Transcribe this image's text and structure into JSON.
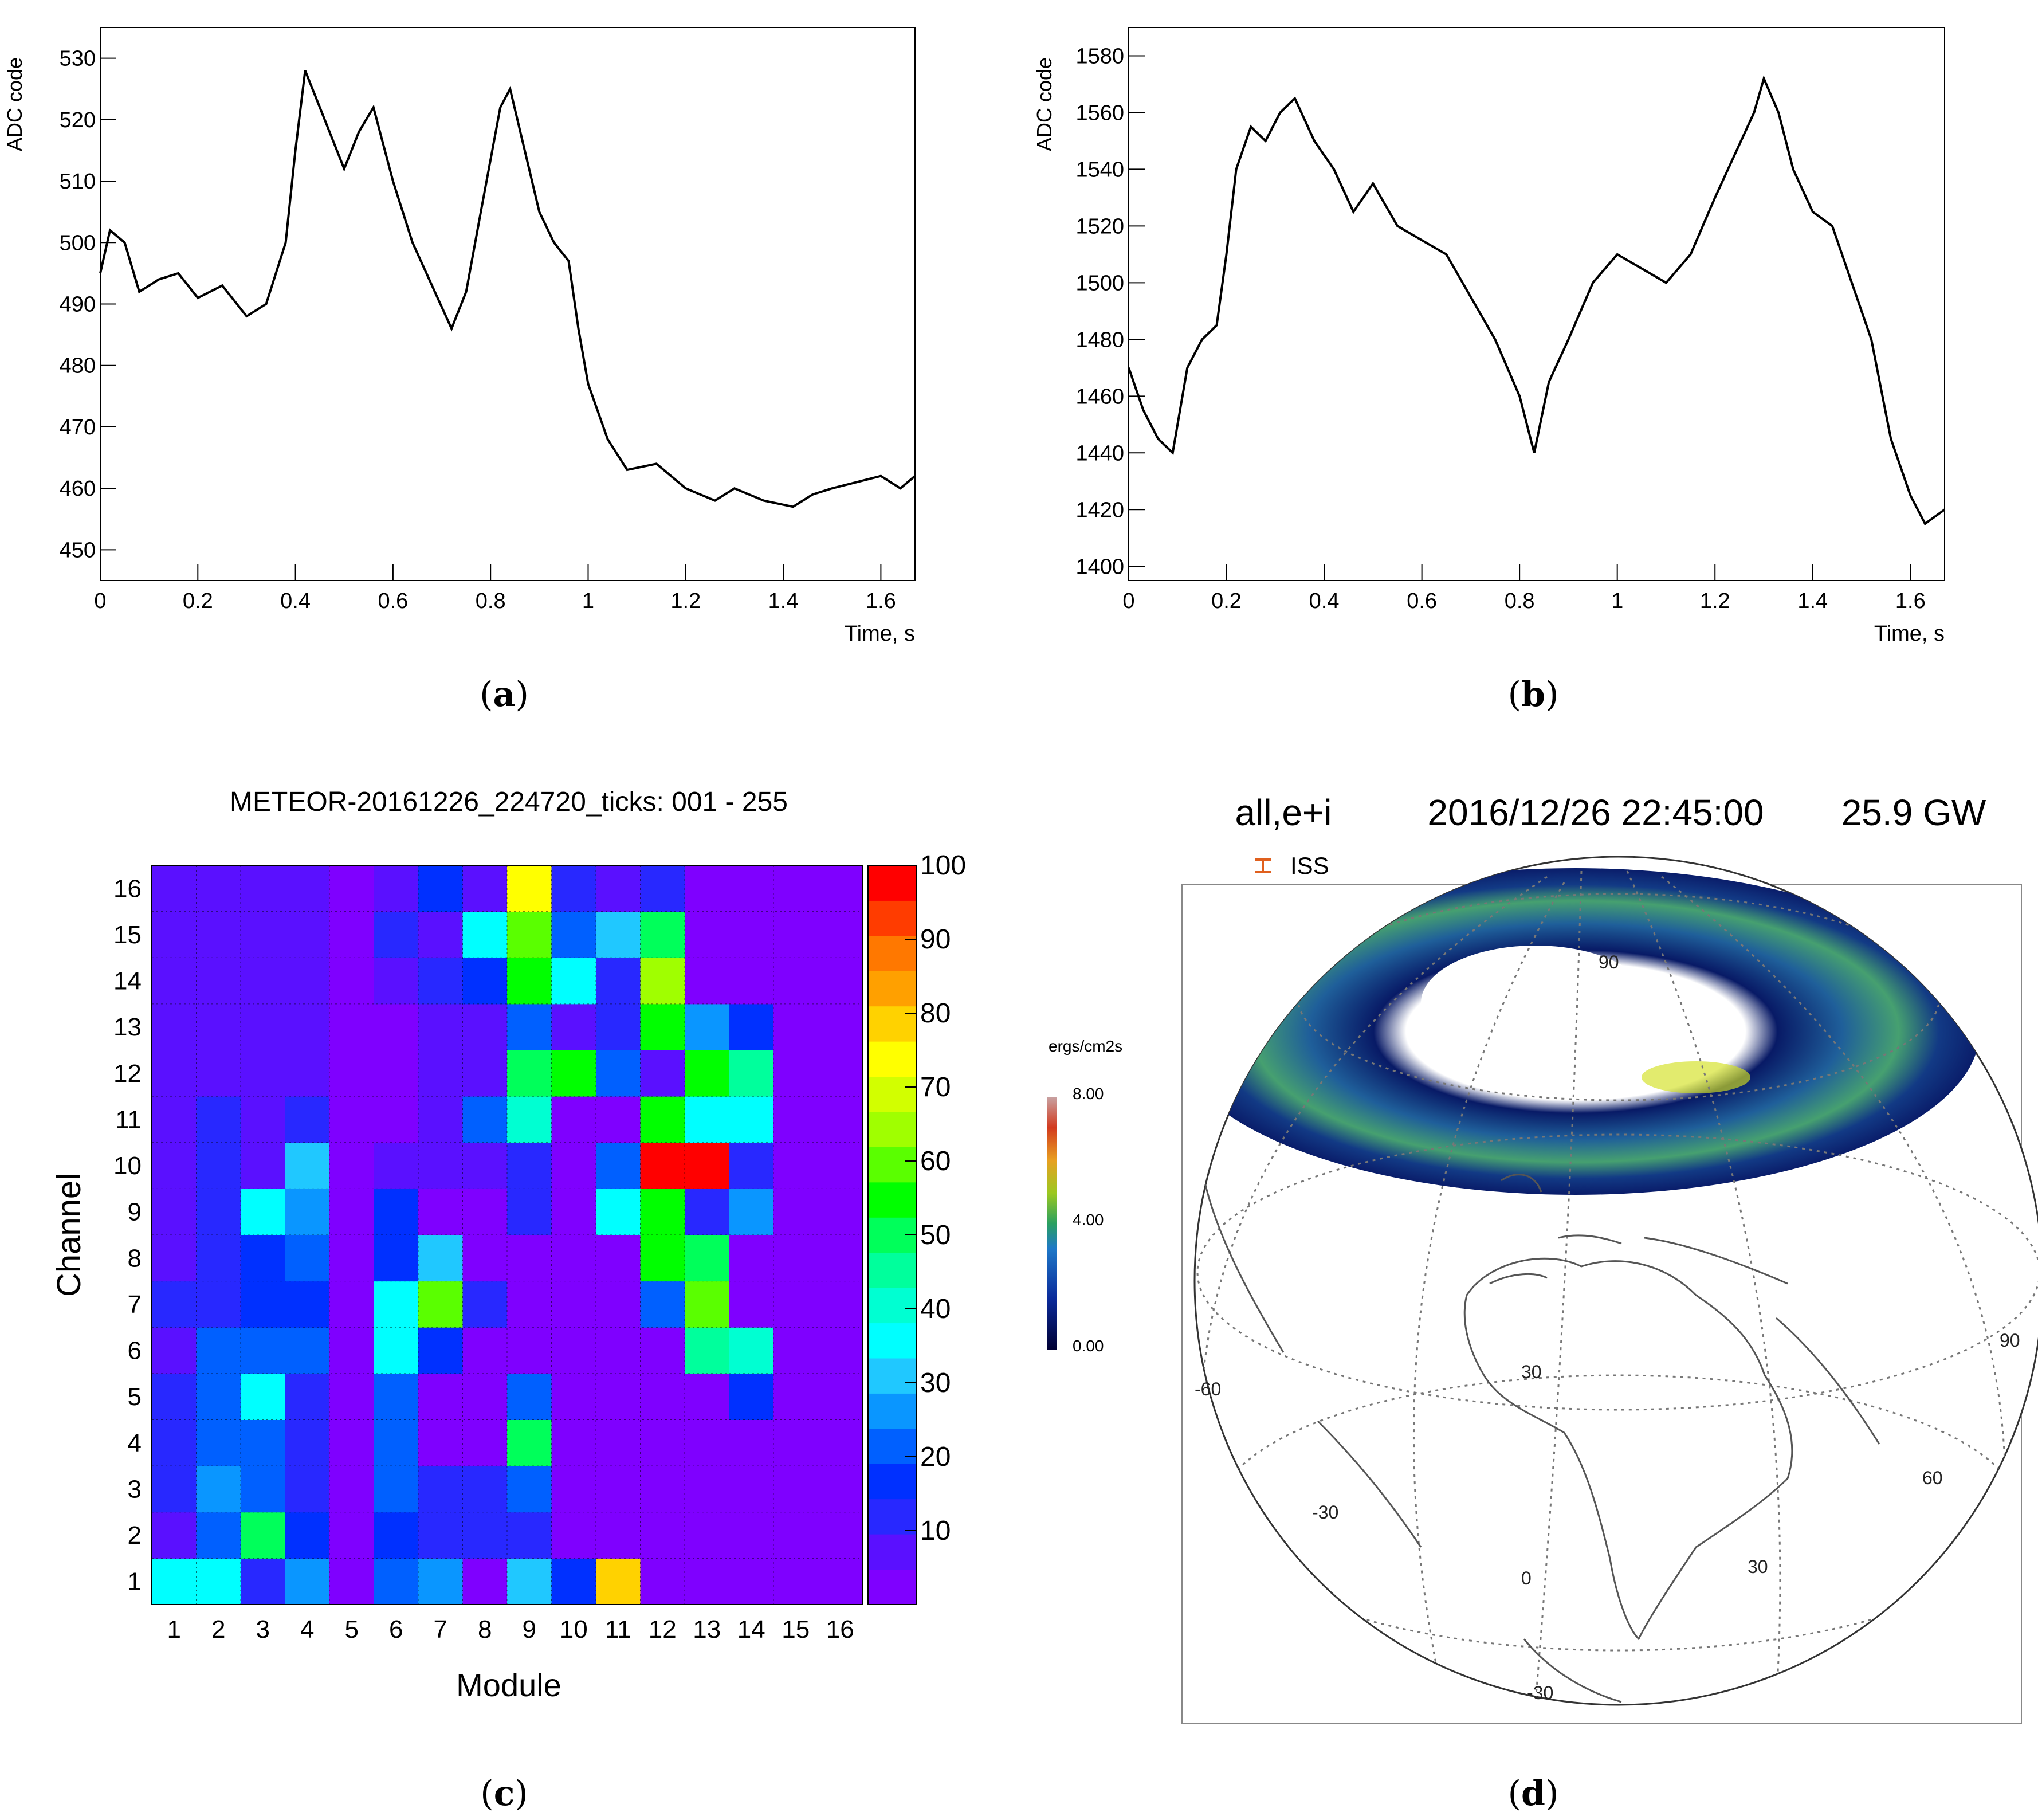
{
  "figure": {
    "panel_a": {
      "caption_letter": "a"
    },
    "panel_b": {
      "caption_letter": "b"
    },
    "panel_c": {
      "caption_letter": "c"
    },
    "panel_d": {
      "caption_letter": "d"
    }
  },
  "chart_data": [
    {
      "id": "a",
      "type": "line",
      "title": "",
      "xlabel": "Time, s",
      "ylabel": "ADC code",
      "xlim": [
        0,
        1.67
      ],
      "ylim": [
        445,
        535
      ],
      "xticks": [
        0,
        0.2,
        0.4,
        0.6,
        0.8,
        1,
        1.2,
        1.4,
        1.6
      ],
      "xtick_labels": [
        "0",
        "0.2",
        "0.4",
        "0.6",
        "0.8",
        "1",
        "1.2",
        "1.4",
        "1.6"
      ],
      "yticks": [
        450,
        460,
        470,
        480,
        490,
        500,
        510,
        520,
        530
      ],
      "ytick_labels": [
        "450",
        "460",
        "470",
        "480",
        "490",
        "500",
        "510",
        "520",
        "530"
      ],
      "x": [
        0,
        0.02,
        0.05,
        0.08,
        0.12,
        0.16,
        0.2,
        0.25,
        0.3,
        0.34,
        0.38,
        0.4,
        0.42,
        0.45,
        0.48,
        0.5,
        0.53,
        0.56,
        0.6,
        0.64,
        0.68,
        0.72,
        0.75,
        0.78,
        0.82,
        0.84,
        0.87,
        0.9,
        0.93,
        0.96,
        0.98,
        1.0,
        1.04,
        1.08,
        1.14,
        1.2,
        1.26,
        1.3,
        1.36,
        1.42,
        1.46,
        1.5,
        1.55,
        1.6,
        1.64,
        1.67
      ],
      "y": [
        495,
        502,
        500,
        492,
        494,
        495,
        491,
        493,
        488,
        490,
        500,
        515,
        528,
        522,
        516,
        512,
        518,
        522,
        510,
        500,
        493,
        486,
        492,
        505,
        522,
        525,
        515,
        505,
        500,
        497,
        486,
        477,
        468,
        463,
        464,
        460,
        458,
        460,
        458,
        457,
        459,
        460,
        461,
        462,
        460,
        462
      ]
    },
    {
      "id": "b",
      "type": "line",
      "title": "",
      "xlabel": "Time, s",
      "ylabel": "ADC code",
      "xlim": [
        0,
        1.67
      ],
      "ylim": [
        1395,
        1590
      ],
      "xticks": [
        0,
        0.2,
        0.4,
        0.6,
        0.8,
        1,
        1.2,
        1.4,
        1.6
      ],
      "xtick_labels": [
        "0",
        "0.2",
        "0.4",
        "0.6",
        "0.8",
        "1",
        "1.2",
        "1.4",
        "1.6"
      ],
      "yticks": [
        1400,
        1420,
        1440,
        1460,
        1480,
        1500,
        1520,
        1540,
        1560,
        1580
      ],
      "ytick_labels": [
        "1400",
        "1420",
        "1440",
        "1460",
        "1480",
        "1500",
        "1520",
        "1540",
        "1560",
        "1580"
      ],
      "x": [
        0,
        0.03,
        0.06,
        0.09,
        0.12,
        0.15,
        0.18,
        0.2,
        0.22,
        0.25,
        0.28,
        0.31,
        0.34,
        0.38,
        0.42,
        0.46,
        0.5,
        0.55,
        0.6,
        0.65,
        0.7,
        0.75,
        0.8,
        0.83,
        0.86,
        0.9,
        0.95,
        1.0,
        1.05,
        1.1,
        1.15,
        1.2,
        1.24,
        1.28,
        1.3,
        1.33,
        1.36,
        1.4,
        1.44,
        1.48,
        1.52,
        1.56,
        1.6,
        1.63,
        1.67
      ],
      "y": [
        1470,
        1455,
        1445,
        1440,
        1470,
        1480,
        1485,
        1510,
        1540,
        1555,
        1550,
        1560,
        1565,
        1550,
        1540,
        1525,
        1535,
        1520,
        1515,
        1510,
        1495,
        1480,
        1460,
        1440,
        1465,
        1480,
        1500,
        1510,
        1505,
        1500,
        1510,
        1530,
        1545,
        1560,
        1572,
        1560,
        1540,
        1525,
        1520,
        1500,
        1480,
        1445,
        1425,
        1415,
        1420
      ]
    },
    {
      "id": "c",
      "type": "heatmap",
      "title": "METEOR-20161226_224720_ticks: 001 - 255",
      "xlabel": "Module",
      "ylabel": "Channel",
      "x_categories": [
        "1",
        "2",
        "3",
        "4",
        "5",
        "6",
        "7",
        "8",
        "9",
        "10",
        "11",
        "12",
        "13",
        "14",
        "15",
        "16"
      ],
      "y_categories": [
        "1",
        "2",
        "3",
        "4",
        "5",
        "6",
        "7",
        "8",
        "9",
        "10",
        "11",
        "12",
        "13",
        "14",
        "15",
        "16"
      ],
      "colorbar_range": [
        0,
        100
      ],
      "colorbar_ticks": [
        10,
        20,
        30,
        40,
        50,
        60,
        70,
        80,
        90,
        100
      ],
      "colorbar_tick_labels": [
        "10",
        "20",
        "30",
        "40",
        "50",
        "60",
        "70",
        "80",
        "90",
        "100"
      ],
      "rows_channel_1_to_16": [
        [
          33,
          33,
          10,
          25,
          2,
          20,
          27,
          2,
          28,
          15,
          82,
          2,
          2,
          2,
          2,
          2
        ],
        [
          3,
          18,
          48,
          15,
          2,
          17,
          8,
          8,
          10,
          2,
          2,
          2,
          2,
          2,
          2,
          2
        ],
        [
          8,
          26,
          22,
          8,
          2,
          22,
          8,
          12,
          22,
          2,
          2,
          2,
          2,
          2,
          2,
          2
        ],
        [
          10,
          22,
          18,
          8,
          2,
          22,
          2,
          2,
          48,
          2,
          2,
          2,
          2,
          2,
          2,
          2
        ],
        [
          10,
          18,
          33,
          10,
          2,
          22,
          2,
          2,
          22,
          2,
          2,
          2,
          2,
          15,
          2,
          2
        ],
        [
          3,
          22,
          18,
          22,
          2,
          33,
          15,
          2,
          2,
          2,
          2,
          2,
          46,
          42,
          2,
          2
        ],
        [
          8,
          10,
          15,
          15,
          2,
          33,
          58,
          8,
          2,
          2,
          2,
          22,
          62,
          2,
          2,
          2
        ],
        [
          6,
          8,
          15,
          22,
          2,
          15,
          28,
          2,
          2,
          2,
          2,
          55,
          52,
          2,
          2,
          2
        ],
        [
          6,
          8,
          33,
          26,
          2,
          15,
          2,
          2,
          8,
          2,
          36,
          55,
          8,
          26,
          2,
          2
        ],
        [
          3,
          8,
          3,
          28,
          2,
          6,
          6,
          6,
          8,
          2,
          22,
          98,
          98,
          8,
          2,
          2
        ],
        [
          3,
          8,
          3,
          10,
          2,
          2,
          6,
          22,
          42,
          2,
          2,
          55,
          33,
          33,
          2,
          2
        ],
        [
          3,
          3,
          6,
          3,
          2,
          2,
          3,
          3,
          50,
          55,
          20,
          6,
          55,
          46,
          2,
          2
        ],
        [
          3,
          6,
          3,
          3,
          2,
          2,
          6,
          3,
          22,
          3,
          10,
          55,
          26,
          15,
          2,
          2
        ],
        [
          3,
          6,
          3,
          3,
          2,
          3,
          8,
          15,
          55,
          33,
          10,
          66,
          2,
          2,
          2,
          2
        ],
        [
          3,
          3,
          6,
          3,
          2,
          8,
          6,
          36,
          62,
          20,
          28,
          50,
          2,
          2,
          2,
          2
        ],
        [
          3,
          3,
          3,
          3,
          2,
          6,
          15,
          3,
          75,
          8,
          3,
          10,
          2,
          2,
          2,
          2
        ]
      ]
    },
    {
      "id": "d",
      "type": "map",
      "title_left": "all,e+i",
      "title_mid": "2016/12/26 22:45:00",
      "title_right": "25.9 GW",
      "legend_label": "ISS",
      "colorbar_title": "ergs/cm2s",
      "colorbar_range": [
        0,
        8
      ],
      "colorbar_tick_labels": [
        "8.00",
        "4.00",
        "0.00"
      ],
      "grid_labels": [
        "90",
        "90",
        "-60",
        "30",
        "60",
        "-30",
        "30",
        "0",
        "-30"
      ]
    }
  ],
  "colors": {
    "line": "#000000",
    "axis": "#000000",
    "map_ocean": "#ffffff",
    "map_coast": "#555555"
  }
}
